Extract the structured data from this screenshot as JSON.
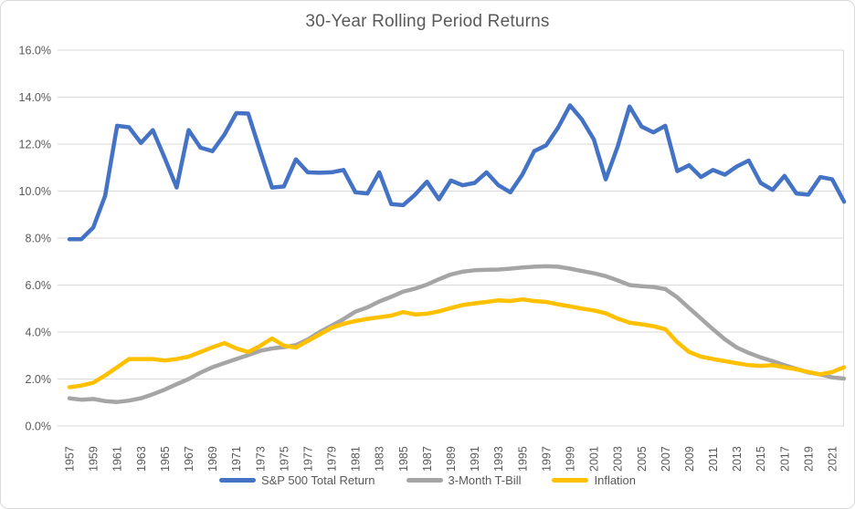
{
  "window": {
    "background": "#FFFFFF",
    "border_color": "#D9D9D9"
  },
  "text_colors": {
    "title": "#595959",
    "axis_labels": "#595959",
    "legend": "#595959"
  },
  "chart_data": {
    "type": "line",
    "title": "30-Year Rolling Period Returns",
    "xlabel": "",
    "ylabel": "",
    "ylim": [
      0,
      16
    ],
    "ytick_step": 2,
    "grid": true,
    "gridline_color": "#D9D9D9",
    "legend_position": "bottom",
    "ytick_labels": [
      "0.0%",
      "2.0%",
      "4.0%",
      "6.0%",
      "8.0%",
      "10.0%",
      "12.0%",
      "14.0%",
      "16.0%"
    ],
    "xtick_labels": [
      "1957",
      "1959",
      "1961",
      "1963",
      "1965",
      "1967",
      "1969",
      "1971",
      "1973",
      "1975",
      "1977",
      "1979",
      "1981",
      "1983",
      "1985",
      "1987",
      "1989",
      "1991",
      "1993",
      "1995",
      "1997",
      "1999",
      "2001",
      "2003",
      "2005",
      "2007",
      "2009",
      "2011",
      "2013",
      "2015",
      "2017",
      "2019",
      "2021"
    ],
    "x": [
      1957,
      1958,
      1959,
      1960,
      1961,
      1962,
      1963,
      1964,
      1965,
      1966,
      1967,
      1968,
      1969,
      1970,
      1971,
      1972,
      1973,
      1974,
      1975,
      1976,
      1977,
      1978,
      1979,
      1980,
      1981,
      1982,
      1983,
      1984,
      1985,
      1986,
      1987,
      1988,
      1989,
      1990,
      1991,
      1992,
      1993,
      1994,
      1995,
      1996,
      1997,
      1998,
      1999,
      2000,
      2001,
      2002,
      2003,
      2004,
      2005,
      2006,
      2007,
      2008,
      2009,
      2010,
      2011,
      2012,
      2013,
      2014,
      2015,
      2016,
      2017,
      2018,
      2019,
      2020,
      2021,
      2022
    ],
    "series": [
      {
        "name": "S&P 500 Total Return",
        "color": "#4472C4",
        "values": [
          7.95,
          7.95,
          8.45,
          9.8,
          12.78,
          12.72,
          12.05,
          12.6,
          11.4,
          10.15,
          12.6,
          11.85,
          11.7,
          12.4,
          13.32,
          13.3,
          11.7,
          10.15,
          10.2,
          11.35,
          10.8,
          10.78,
          10.8,
          10.9,
          9.95,
          9.9,
          10.8,
          9.45,
          9.4,
          9.85,
          10.4,
          9.65,
          10.45,
          10.25,
          10.35,
          10.8,
          10.25,
          9.95,
          10.7,
          11.7,
          11.95,
          12.7,
          13.65,
          13.05,
          12.2,
          10.5,
          11.9,
          13.6,
          12.75,
          12.5,
          12.78,
          10.85,
          11.1,
          10.6,
          10.9,
          10.7,
          11.05,
          11.3,
          10.35,
          10.05,
          10.65,
          9.9,
          9.85,
          10.6,
          10.5,
          9.55
        ]
      },
      {
        "name": "3-Month T-Bill",
        "color": "#A5A5A5",
        "values": [
          1.18,
          1.12,
          1.15,
          1.06,
          1.02,
          1.08,
          1.18,
          1.35,
          1.55,
          1.78,
          2.0,
          2.27,
          2.5,
          2.68,
          2.85,
          3.02,
          3.2,
          3.3,
          3.36,
          3.44,
          3.68,
          4.0,
          4.27,
          4.55,
          4.87,
          5.05,
          5.3,
          5.5,
          5.72,
          5.85,
          6.02,
          6.25,
          6.45,
          6.57,
          6.63,
          6.65,
          6.66,
          6.7,
          6.75,
          6.78,
          6.8,
          6.78,
          6.7,
          6.6,
          6.5,
          6.38,
          6.2,
          6.0,
          5.95,
          5.92,
          5.83,
          5.48,
          5.02,
          4.57,
          4.12,
          3.69,
          3.34,
          3.11,
          2.92,
          2.76,
          2.59,
          2.43,
          2.28,
          2.2,
          2.07,
          2.02
        ]
      },
      {
        "name": "Inflation",
        "color": "#FFC000",
        "values": [
          1.65,
          1.72,
          1.84,
          2.15,
          2.5,
          2.85,
          2.85,
          2.85,
          2.79,
          2.85,
          2.95,
          3.15,
          3.35,
          3.53,
          3.3,
          3.15,
          3.41,
          3.73,
          3.42,
          3.34,
          3.62,
          3.9,
          4.18,
          4.35,
          4.47,
          4.56,
          4.63,
          4.7,
          4.85,
          4.75,
          4.78,
          4.88,
          5.02,
          5.15,
          5.22,
          5.28,
          5.35,
          5.32,
          5.39,
          5.32,
          5.28,
          5.18,
          5.09,
          5.0,
          4.92,
          4.8,
          4.57,
          4.4,
          4.33,
          4.25,
          4.12,
          3.57,
          3.15,
          2.95,
          2.85,
          2.76,
          2.67,
          2.59,
          2.56,
          2.59,
          2.5,
          2.41,
          2.3,
          2.2,
          2.3,
          2.5
        ]
      }
    ]
  }
}
